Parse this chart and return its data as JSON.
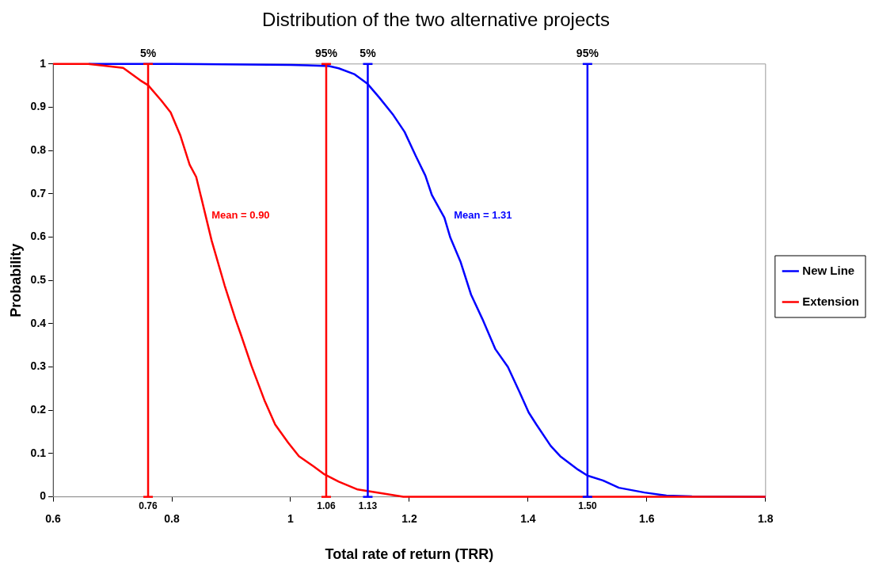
{
  "chart_data": {
    "type": "line",
    "title": "Distribution of the two alternative projects",
    "xlabel": "Total rate of return (TRR)",
    "ylabel": "Probability",
    "xlim": [
      0.6,
      1.8
    ],
    "xticks": [
      0.6,
      0.8,
      1,
      1.2,
      1.4,
      1.6,
      1.8
    ],
    "ylim": [
      0,
      1
    ],
    "yticks": [
      0,
      0.1,
      0.2,
      0.3,
      0.4,
      0.5,
      0.6,
      0.7,
      0.8,
      0.9,
      1
    ],
    "grid": false,
    "legend": "right",
    "marker": "none",
    "line_style": "solid",
    "series": [
      {
        "name": "New Line",
        "color": "#0000ff",
        "x": [
          0.66,
          0.8,
          1.0,
          1.028,
          1.065,
          1.081,
          1.108,
          1.129,
          1.149,
          1.173,
          1.192,
          1.211,
          1.227,
          1.238,
          1.259,
          1.269,
          1.286,
          1.304,
          1.323,
          1.345,
          1.366,
          1.385,
          1.401,
          1.414,
          1.438,
          1.454,
          1.484,
          1.5,
          1.526,
          1.553,
          1.596,
          1.633,
          1.676,
          1.8
        ],
        "values": [
          1,
          1,
          0.998,
          0.997,
          0.995,
          0.99,
          0.976,
          0.955,
          0.923,
          0.882,
          0.843,
          0.787,
          0.742,
          0.697,
          0.645,
          0.599,
          0.544,
          0.467,
          0.411,
          0.341,
          0.3,
          0.244,
          0.195,
          0.167,
          0.118,
          0.094,
          0.063,
          0.049,
          0.038,
          0.021,
          0.01,
          0.003,
          0.001,
          0
        ]
      },
      {
        "name": "Extension",
        "color": "#ff0000",
        "x": [
          0.6,
          0.659,
          0.68,
          0.718,
          0.747,
          0.76,
          0.782,
          0.798,
          0.814,
          0.83,
          0.841,
          0.851,
          0.867,
          0.889,
          0.907,
          0.916,
          0.934,
          0.956,
          0.974,
          0.996,
          1.014,
          1.039,
          1.057,
          1.081,
          1.113,
          1.159,
          1.19,
          1.8
        ],
        "values": [
          1,
          1,
          0.997,
          0.991,
          0.962,
          0.951,
          0.916,
          0.888,
          0.836,
          0.767,
          0.739,
          0.683,
          0.592,
          0.488,
          0.411,
          0.376,
          0.303,
          0.223,
          0.167,
          0.125,
          0.094,
          0.07,
          0.052,
          0.035,
          0.017,
          0.007,
          0,
          0
        ]
      }
    ],
    "ref_lines": [
      {
        "axis": "x",
        "value": 0.76,
        "label": "0.76",
        "color": "#ff0000"
      },
      {
        "axis": "x",
        "value": 1.06,
        "label": "1.06",
        "color": "#ff0000"
      },
      {
        "axis": "x",
        "value": 1.13,
        "label": "1.13",
        "color": "#0000ff"
      },
      {
        "axis": "x",
        "value": 1.5,
        "label": "1.50",
        "color": "#0000ff"
      }
    ],
    "annotations": [
      {
        "text": "5%",
        "x": 0.76,
        "y": 1
      },
      {
        "text": "95%",
        "x": 1.06,
        "y": 1
      },
      {
        "text": "5%",
        "x": 1.13,
        "y": 1
      },
      {
        "text": "95%",
        "x": 1.5,
        "y": 1
      },
      "Mean = 0.90",
      "Mean = 1.31"
    ]
  }
}
